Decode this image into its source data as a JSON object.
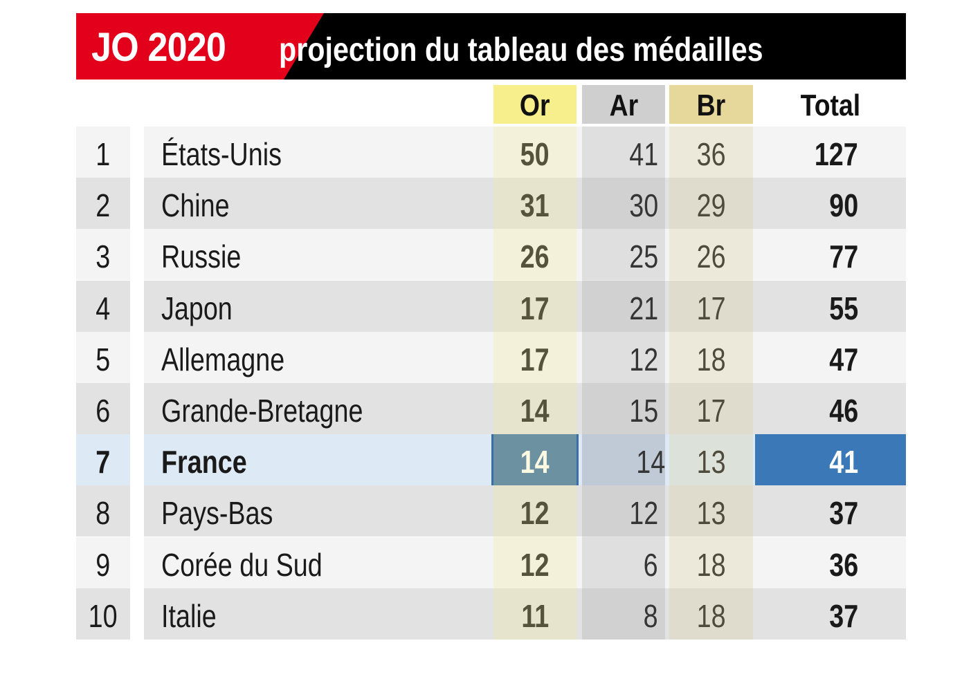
{
  "header": {
    "brand": "JO 2020",
    "title": "projection du tableau des médailles",
    "colors": {
      "brand_bg": "#e2001a",
      "title_bg": "#000000",
      "highlight": "#3a78b8"
    }
  },
  "columns": {
    "gold": "Or",
    "silver": "Ar",
    "bronze": "Br",
    "total": "Total"
  },
  "chart_data": {
    "type": "table",
    "title": "JO 2020 projection du tableau des médailles",
    "columns": [
      "",
      "",
      "Or",
      "Ar",
      "Br",
      "Total"
    ],
    "rows": [
      {
        "rank": "1",
        "country": "États-Unis",
        "gold": "50",
        "silver": "41",
        "bronze": "36",
        "total": "127"
      },
      {
        "rank": "2",
        "country": "Chine",
        "gold": "31",
        "silver": "30",
        "bronze": "29",
        "total": "90"
      },
      {
        "rank": "3",
        "country": "Russie",
        "gold": "26",
        "silver": "25",
        "bronze": "26",
        "total": "77"
      },
      {
        "rank": "4",
        "country": "Japon",
        "gold": "17",
        "silver": "21",
        "bronze": "17",
        "total": "55"
      },
      {
        "rank": "5",
        "country": "Allemagne",
        "gold": "17",
        "silver": "12",
        "bronze": "18",
        "total": "47"
      },
      {
        "rank": "6",
        "country": "Grande-Bretagne",
        "gold": "14",
        "silver": "15",
        "bronze": "17",
        "total": "46"
      },
      {
        "rank": "7",
        "country": "France",
        "gold": "14",
        "silver": "14",
        "bronze": "13",
        "total": "41",
        "highlighted": true
      },
      {
        "rank": "8",
        "country": "Pays-Bas",
        "gold": "12",
        "silver": "12",
        "bronze": "13",
        "total": "37"
      },
      {
        "rank": "9",
        "country": "Corée du Sud",
        "gold": "12",
        "silver": "6",
        "bronze": "18",
        "total": "36"
      },
      {
        "rank": "10",
        "country": "Italie",
        "gold": "11",
        "silver": "8",
        "bronze": "18",
        "total": "37"
      }
    ]
  }
}
